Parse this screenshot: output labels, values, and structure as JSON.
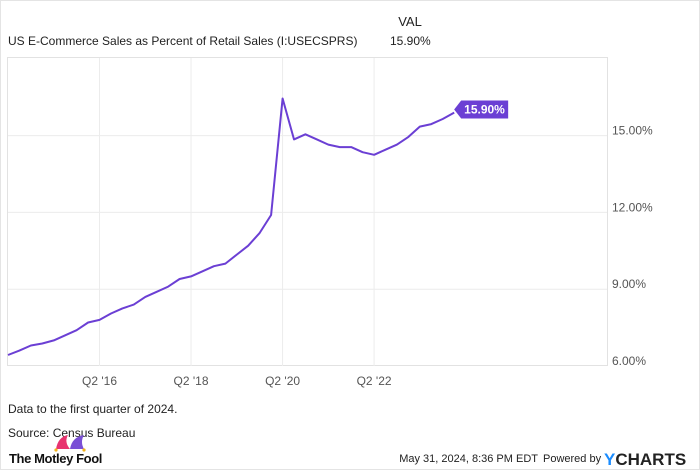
{
  "header": {
    "series_name": "US E-Commerce Sales as Percent of Retail Sales (I:USECSPRS)",
    "val_label": "VAL",
    "val_value": "15.90%"
  },
  "chart_data": {
    "type": "line",
    "title": "US E-Commerce Sales as Percent of Retail Sales (I:USECSPRS)",
    "xlabel": "",
    "ylabel": "",
    "ylim": [
      6,
      17.3
    ],
    "grid": true,
    "legend": "top-left",
    "x_tick_labels": [
      {
        "label": "Q2 '16",
        "index": 8
      },
      {
        "label": "Q2 '18",
        "index": 16
      },
      {
        "label": "Q2 '20",
        "index": 24
      },
      {
        "label": "Q2 '22",
        "index": 32
      }
    ],
    "y_ticks": [
      6,
      9,
      12,
      15
    ],
    "y_tick_labels": [
      "6.00%",
      "9.00%",
      "12.00%",
      "15.00%"
    ],
    "end_label": "15.90%",
    "color": "#6b3fd4",
    "x": [
      "Q2 2014",
      "Q3 2014",
      "Q4 2014",
      "Q1 2015",
      "Q2 2015",
      "Q3 2015",
      "Q4 2015",
      "Q1 2016",
      "Q2 2016",
      "Q3 2016",
      "Q4 2016",
      "Q1 2017",
      "Q2 2017",
      "Q3 2017",
      "Q4 2017",
      "Q1 2018",
      "Q2 2018",
      "Q3 2018",
      "Q4 2018",
      "Q1 2019",
      "Q2 2019",
      "Q3 2019",
      "Q4 2019",
      "Q1 2020",
      "Q2 2020",
      "Q3 2020",
      "Q4 2020",
      "Q1 2021",
      "Q2 2021",
      "Q3 2021",
      "Q4 2021",
      "Q1 2022",
      "Q2 2022",
      "Q3 2022",
      "Q4 2022",
      "Q1 2023",
      "Q2 2023",
      "Q3 2023",
      "Q4 2023",
      "Q1 2024"
    ],
    "series": [
      {
        "name": "US E-Commerce Sales as Percent of Retail Sales",
        "values": [
          6.43,
          6.6,
          6.8,
          6.88,
          7.0,
          7.2,
          7.4,
          7.7,
          7.8,
          8.05,
          8.25,
          8.4,
          8.7,
          8.9,
          9.1,
          9.4,
          9.5,
          9.7,
          9.9,
          10.0,
          10.35,
          10.7,
          11.2,
          11.9,
          16.45,
          14.85,
          15.05,
          14.85,
          14.65,
          14.55,
          14.55,
          14.35,
          14.25,
          14.45,
          14.65,
          14.95,
          15.35,
          15.45,
          15.65,
          15.9
        ]
      }
    ]
  },
  "footer": {
    "note": "Data to the first quarter of 2024.",
    "source": "Source: Census Bureau",
    "brand": "The Motley Fool",
    "timestamp": "May 31, 2024, 8:36 PM EDT",
    "powered_by": "Powered by",
    "ycharts": "YCHARTS"
  }
}
